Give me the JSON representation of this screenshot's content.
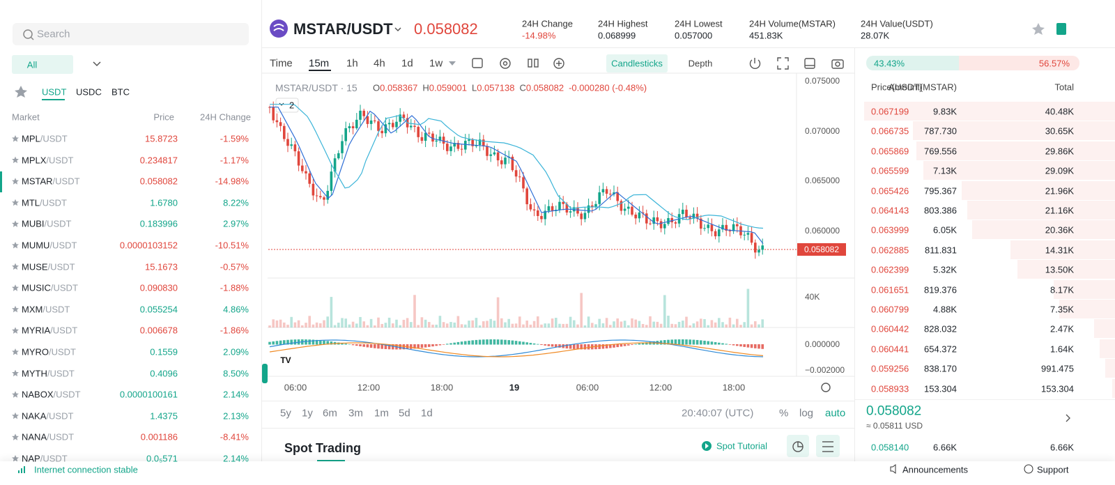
{
  "sidebar": {
    "search_placeholder": "Search",
    "filter": "All",
    "tabs": [
      "USDT",
      "USDC",
      "BTC"
    ],
    "columns": [
      "Market",
      "Price",
      "24H Change"
    ],
    "markets": [
      {
        "base": "MPL",
        "quote": "/USDT",
        "price": "15.8723",
        "change": "-1.59%"
      },
      {
        "base": "MPLX",
        "quote": "/USDT",
        "price": "0.234817",
        "change": "-1.17%"
      },
      {
        "base": "MSTAR",
        "quote": "/USDT",
        "price": "0.058082",
        "change": "-14.98%"
      },
      {
        "base": "MTL",
        "quote": "/USDT",
        "price": "1.6780",
        "change": "8.22%"
      },
      {
        "base": "MUBI",
        "quote": "/USDT",
        "price": "0.183996",
        "change": "2.97%"
      },
      {
        "base": "MUMU",
        "quote": "/USDT",
        "price": "0.0000103152",
        "change": "-10.51%"
      },
      {
        "base": "MUSE",
        "quote": "/USDT",
        "price": "15.1673",
        "change": "-0.57%"
      },
      {
        "base": "MUSIC",
        "quote": "/USDT",
        "price": "0.090830",
        "change": "-1.88%"
      },
      {
        "base": "MXM",
        "quote": "/USDT",
        "price": "0.055254",
        "change": "4.86%"
      },
      {
        "base": "MYRIA",
        "quote": "/USDT",
        "price": "0.006678",
        "change": "-1.86%"
      },
      {
        "base": "MYRO",
        "quote": "/USDT",
        "price": "0.1559",
        "change": "2.09%"
      },
      {
        "base": "MYTH",
        "quote": "/USDT",
        "price": "0.4096",
        "change": "8.50%"
      },
      {
        "base": "NABOX",
        "quote": "/USDT",
        "price": "0.0000100161",
        "change": "2.14%"
      },
      {
        "base": "NAKA",
        "quote": "/USDT",
        "price": "1.4375",
        "change": "2.13%"
      },
      {
        "base": "NANA",
        "quote": "/USDT",
        "price": "0.001186",
        "change": "-8.41%"
      },
      {
        "base": "NAP",
        "quote": "/USDT",
        "price": "0.0₅571",
        "change": "2.14%"
      }
    ]
  },
  "header": {
    "pair": "MSTAR/USDT",
    "price": "0.058082",
    "stats": [
      {
        "label": "24H Change",
        "value": "-14.98%"
      },
      {
        "label": "24H Highest",
        "value": "0.068999"
      },
      {
        "label": "24H Lowest",
        "value": "0.057000"
      },
      {
        "label": "24H Volume(MSTAR)",
        "value": "451.83K"
      },
      {
        "label": "24H Value(USDT)",
        "value": "28.07K"
      }
    ]
  },
  "chart": {
    "intervals": [
      "Time",
      "15m",
      "1h",
      "4h",
      "1d",
      "1w"
    ],
    "views": [
      "Candlesticks",
      "Depth"
    ],
    "legend": {
      "symbol": "MSTAR/USDT · 15",
      "ohlc": [
        {
          "key": "O",
          "value": "0.058367"
        },
        {
          "key": "H",
          "value": "0.059001"
        },
        {
          "key": "L",
          "value": "0.057138"
        },
        {
          "key": "C",
          "value": "0.058082"
        }
      ],
      "change": "-0.000280 (-0.48%)",
      "indicator_count": "2"
    },
    "price_axis": [
      "0.075000",
      "0.070000",
      "0.065000",
      "0.060000"
    ],
    "last_price": "0.058082",
    "volume_axis": [
      "40K"
    ],
    "macd_axis": [
      "0.000000",
      "−0.002000"
    ],
    "time_axis": [
      "06:00",
      "12:00",
      "18:00",
      "19",
      "06:00",
      "12:00",
      "18:00"
    ],
    "ranges": [
      "5y",
      "1y",
      "6m",
      "3m",
      "1m",
      "5d",
      "1d"
    ],
    "clock": "20:40:07 (UTC)",
    "scale_options": [
      "%",
      "log",
      "auto"
    ]
  },
  "trading": {
    "title": "Spot Trading",
    "tutorial": "Spot Tutorial"
  },
  "order_book": {
    "buy_ratio": "43.43%",
    "sell_ratio": "56.57%",
    "columns": [
      "Price(USDT)",
      "Amount(MSTAR)",
      "Total"
    ],
    "asks": [
      [
        "0.067199",
        "9.83K",
        "40.48K"
      ],
      [
        "0.066735",
        "787.730",
        "30.65K"
      ],
      [
        "0.065869",
        "769.556",
        "29.86K"
      ],
      [
        "0.065599",
        "7.13K",
        "29.09K"
      ],
      [
        "0.065426",
        "795.367",
        "21.96K"
      ],
      [
        "0.064143",
        "803.386",
        "21.16K"
      ],
      [
        "0.063999",
        "6.05K",
        "20.36K"
      ],
      [
        "0.062885",
        "811.831",
        "14.31K"
      ],
      [
        "0.062399",
        "5.32K",
        "13.50K"
      ],
      [
        "0.061651",
        "819.376",
        "8.17K"
      ],
      [
        "0.060799",
        "4.88K",
        "7.35K"
      ],
      [
        "0.060442",
        "828.032",
        "2.47K"
      ],
      [
        "0.060441",
        "654.372",
        "1.64K"
      ],
      [
        "0.059256",
        "838.170",
        "991.475"
      ],
      [
        "0.058933",
        "153.304",
        "153.304"
      ]
    ],
    "mid_price": "0.058082",
    "mid_price_usd": "≈ 0.05811 USD",
    "bids": [
      [
        "0.058140",
        "6.66K",
        "6.66K"
      ]
    ]
  },
  "footer": {
    "status": "Internet connection stable",
    "links": [
      "Announcements",
      "Support"
    ]
  }
}
